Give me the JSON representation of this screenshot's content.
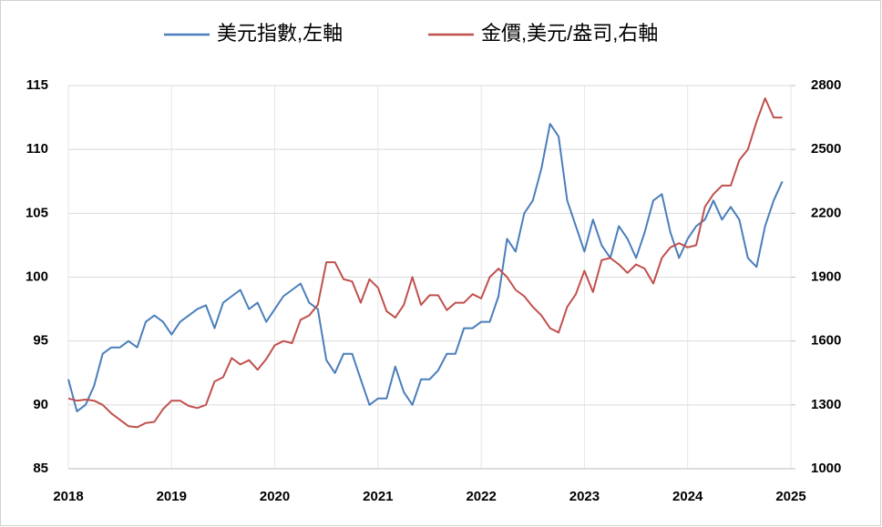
{
  "chart_data": {
    "type": "line",
    "x": [
      2018.0,
      2018.083,
      2018.167,
      2018.25,
      2018.333,
      2018.417,
      2018.5,
      2018.583,
      2018.667,
      2018.75,
      2018.833,
      2018.917,
      2019.0,
      2019.083,
      2019.167,
      2019.25,
      2019.333,
      2019.417,
      2019.5,
      2019.583,
      2019.667,
      2019.75,
      2019.833,
      2019.917,
      2020.0,
      2020.083,
      2020.167,
      2020.25,
      2020.333,
      2020.417,
      2020.5,
      2020.583,
      2020.667,
      2020.75,
      2020.833,
      2020.917,
      2021.0,
      2021.083,
      2021.167,
      2021.25,
      2021.333,
      2021.417,
      2021.5,
      2021.583,
      2021.667,
      2021.75,
      2021.833,
      2021.917,
      2022.0,
      2022.083,
      2022.167,
      2022.25,
      2022.333,
      2022.417,
      2022.5,
      2022.583,
      2022.667,
      2022.75,
      2022.833,
      2022.917,
      2023.0,
      2023.083,
      2023.167,
      2023.25,
      2023.333,
      2023.417,
      2023.5,
      2023.583,
      2023.667,
      2023.75,
      2023.833,
      2023.917,
      2024.0,
      2024.083,
      2024.167,
      2024.25,
      2024.333,
      2024.417,
      2024.5,
      2024.583,
      2024.667,
      2024.75,
      2024.833,
      2024.917
    ],
    "series": [
      {
        "name": "美元指數,左軸",
        "color": "#4a7ebb",
        "axis": "y",
        "values": [
          92,
          89.5,
          90,
          91.5,
          94,
          94.5,
          94.5,
          95,
          94.5,
          96.5,
          97,
          96.5,
          95.5,
          96.5,
          97,
          97.5,
          97.8,
          96,
          98,
          98.5,
          99,
          97.5,
          98,
          96.5,
          97.5,
          98.5,
          99,
          99.5,
          98,
          97.5,
          93.5,
          92.5,
          94,
          94,
          92,
          90,
          90.5,
          90.5,
          93,
          91,
          90,
          92,
          92,
          92.7,
          94,
          94,
          96,
          96,
          96.5,
          96.5,
          98.5,
          103,
          102,
          105,
          106,
          108.5,
          112,
          111,
          106,
          104,
          102,
          104.5,
          102.5,
          101.5,
          104,
          103,
          101.5,
          103.5,
          106,
          106.5,
          103.5,
          101.5,
          103,
          104,
          104.5,
          106,
          104.5,
          105.5,
          104.5,
          101.5,
          100.8,
          104,
          106,
          107.5
        ]
      },
      {
        "name": "金價,美元/盎司,右軸",
        "color": "#c0504d",
        "axis": "y2",
        "values": [
          1330,
          1320,
          1325,
          1320,
          1300,
          1260,
          1230,
          1200,
          1195,
          1215,
          1220,
          1280,
          1320,
          1320,
          1295,
          1285,
          1300,
          1410,
          1430,
          1520,
          1490,
          1510,
          1465,
          1515,
          1580,
          1600,
          1590,
          1700,
          1720,
          1770,
          1970,
          1970,
          1890,
          1880,
          1780,
          1890,
          1850,
          1740,
          1710,
          1770,
          1900,
          1770,
          1815,
          1815,
          1745,
          1780,
          1780,
          1820,
          1800,
          1900,
          1940,
          1900,
          1840,
          1810,
          1760,
          1720,
          1660,
          1640,
          1760,
          1820,
          1930,
          1830,
          1980,
          1990,
          1960,
          1920,
          1960,
          1940,
          1870,
          1990,
          2040,
          2060,
          2040,
          2050,
          2230,
          2290,
          2330,
          2330,
          2450,
          2500,
          2630,
          2740,
          2650,
          2650
        ]
      }
    ],
    "xlim": [
      2018,
      2025
    ],
    "xticks": [
      2018,
      2019,
      2020,
      2021,
      2022,
      2023,
      2024,
      2025
    ],
    "ylim": [
      85,
      115
    ],
    "yticks": [
      85,
      90,
      95,
      100,
      105,
      110,
      115
    ],
    "y2lim": [
      1000,
      2800
    ],
    "y2ticks": [
      1000,
      1300,
      1600,
      1900,
      2200,
      2500,
      2800
    ],
    "grid": true
  }
}
